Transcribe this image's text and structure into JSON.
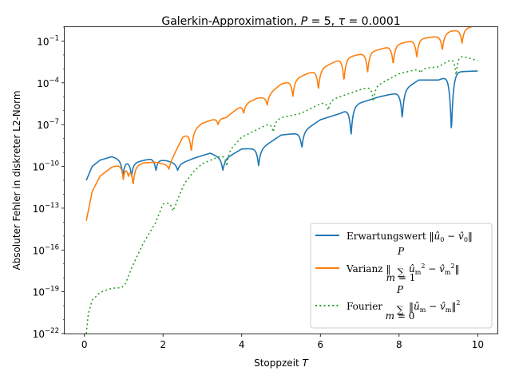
{
  "chart_data": {
    "type": "line",
    "title": "Galerkin-Approximation, P = 5, τ = 0.0001",
    "xlabel": "Stoppzeit T",
    "ylabel": "Absoluter Fehler in diskreter L2-Norm",
    "xlim": [
      -0.5,
      10.5
    ],
    "ylim_exponent": [
      -22,
      0
    ],
    "y_scale": "log",
    "x_ticks": [
      0,
      2,
      4,
      6,
      8,
      10
    ],
    "x_tick_labels": [
      "0",
      "2",
      "4",
      "6",
      "8",
      "10"
    ],
    "y_ticks_exponent": [
      -22,
      -19,
      -16,
      -13,
      -10,
      -7,
      -4,
      -1
    ],
    "y_tick_labels": [
      "10−22",
      "10−19",
      "10−16",
      "10−13",
      "10−10",
      "10−7",
      "10−4",
      "10−1"
    ],
    "grid": false,
    "legend_position": "lower-right",
    "series": [
      {
        "name": "Erwartungswert ‖û0 − v̂0‖",
        "color": "#1f77b4",
        "style": "solid",
        "envelope": [
          [
            0.05,
            -11.0
          ],
          [
            0.2,
            -10.0
          ],
          [
            0.4,
            -9.55
          ],
          [
            0.7,
            -9.3
          ],
          [
            1.0,
            -9.6
          ],
          [
            1.3,
            -9.7
          ],
          [
            1.7,
            -9.45
          ],
          [
            2.1,
            -9.6
          ],
          [
            2.4,
            -9.85
          ],
          [
            2.8,
            -9.4
          ],
          [
            3.2,
            -9.05
          ],
          [
            3.55,
            -9.5
          ],
          [
            4.0,
            -8.75
          ],
          [
            4.5,
            -8.7
          ],
          [
            5.0,
            -7.75
          ],
          [
            5.5,
            -7.6
          ],
          [
            6.0,
            -6.65
          ],
          [
            6.5,
            -6.2
          ],
          [
            7.0,
            -5.45
          ],
          [
            7.5,
            -5.0
          ],
          [
            8.0,
            -4.7
          ],
          [
            8.5,
            -3.8
          ],
          [
            9.0,
            -3.8
          ],
          [
            9.5,
            -3.2
          ],
          [
            10.0,
            -3.15
          ]
        ],
        "dips": [
          [
            0.98,
            -10.7
          ],
          [
            1.2,
            -10.7
          ],
          [
            1.82,
            -10.3
          ],
          [
            2.37,
            -10.3
          ],
          [
            3.52,
            -10.3
          ],
          [
            4.43,
            -10.0
          ],
          [
            5.53,
            -8.7
          ],
          [
            6.78,
            -7.8
          ],
          [
            8.08,
            -6.6
          ],
          [
            9.33,
            -7.6
          ]
        ]
      },
      {
        "name": "Varianz ‖Σ û_m² − v̂_m²‖",
        "color": "#ff7f0e",
        "style": "solid",
        "envelope": [
          [
            0.05,
            -13.9
          ],
          [
            0.2,
            -11.8
          ],
          [
            0.4,
            -10.7
          ],
          [
            0.7,
            -10.05
          ],
          [
            0.95,
            -9.85
          ],
          [
            1.25,
            -10.0
          ],
          [
            1.5,
            -9.75
          ],
          [
            1.8,
            -9.7
          ],
          [
            2.15,
            -9.9
          ],
          [
            2.5,
            -7.9
          ],
          [
            2.72,
            -7.5
          ],
          [
            3.0,
            -6.9
          ],
          [
            3.35,
            -6.55
          ],
          [
            3.6,
            -6.5
          ],
          [
            4.0,
            -5.6
          ],
          [
            4.4,
            -5.1
          ],
          [
            4.6,
            -5.0
          ],
          [
            5.0,
            -4.1
          ],
          [
            5.3,
            -3.8
          ],
          [
            5.7,
            -3.3
          ],
          [
            6.0,
            -3.0
          ],
          [
            6.5,
            -2.3
          ],
          [
            7.0,
            -1.95
          ],
          [
            7.5,
            -1.6
          ],
          [
            8.0,
            -1.2
          ],
          [
            8.5,
            -0.85
          ],
          [
            9.0,
            -0.65
          ],
          [
            9.3,
            -0.3
          ],
          [
            9.6,
            -0.15
          ],
          [
            10.0,
            0.15
          ]
        ],
        "dips": [
          [
            0.99,
            -10.9
          ],
          [
            1.12,
            -10.6
          ],
          [
            1.24,
            -11.3
          ],
          [
            2.15,
            -10.2
          ],
          [
            2.72,
            -9.0
          ],
          [
            3.4,
            -7.0
          ],
          [
            4.05,
            -6.2
          ],
          [
            4.65,
            -5.6
          ],
          [
            5.3,
            -5.0
          ],
          [
            5.95,
            -4.5
          ],
          [
            6.6,
            -3.9
          ],
          [
            7.2,
            -3.3
          ],
          [
            7.85,
            -2.7
          ],
          [
            8.45,
            -2.2
          ],
          [
            9.1,
            -1.7
          ],
          [
            9.6,
            -1.2
          ]
        ]
      },
      {
        "name": "Fourier Σ ‖û_m − v̂_m‖²",
        "color": "#2ca02c",
        "style": "dotted",
        "envelope": [
          [
            0.05,
            -22.0
          ],
          [
            0.1,
            -20.6
          ],
          [
            0.2,
            -19.6
          ],
          [
            0.4,
            -19.05
          ],
          [
            0.7,
            -18.75
          ],
          [
            0.95,
            -18.7
          ],
          [
            1.05,
            -18.4
          ],
          [
            1.2,
            -17.3
          ],
          [
            1.5,
            -15.5
          ],
          [
            1.8,
            -14.1
          ],
          [
            2.0,
            -12.7
          ],
          [
            2.15,
            -12.6
          ],
          [
            2.3,
            -12.8
          ],
          [
            2.55,
            -11.2
          ],
          [
            2.8,
            -10.3
          ],
          [
            3.0,
            -9.8
          ],
          [
            3.3,
            -9.45
          ],
          [
            3.6,
            -9.1
          ],
          [
            4.0,
            -7.9
          ],
          [
            4.5,
            -7.2
          ],
          [
            5.0,
            -6.5
          ],
          [
            5.5,
            -6.2
          ],
          [
            6.0,
            -5.5
          ],
          [
            6.5,
            -5.0
          ],
          [
            7.0,
            -4.5
          ],
          [
            7.5,
            -4.1
          ],
          [
            8.0,
            -3.35
          ],
          [
            8.5,
            -3.0
          ],
          [
            9.0,
            -2.85
          ],
          [
            9.5,
            -2.0
          ],
          [
            10.0,
            -2.4
          ]
        ],
        "dips": [
          [
            2.25,
            -13.2
          ],
          [
            3.62,
            -10.0
          ],
          [
            4.8,
            -7.6
          ],
          [
            6.2,
            -6.0
          ],
          [
            7.35,
            -5.4
          ],
          [
            8.55,
            -3.3
          ],
          [
            9.45,
            -3.5
          ]
        ]
      }
    ]
  }
}
